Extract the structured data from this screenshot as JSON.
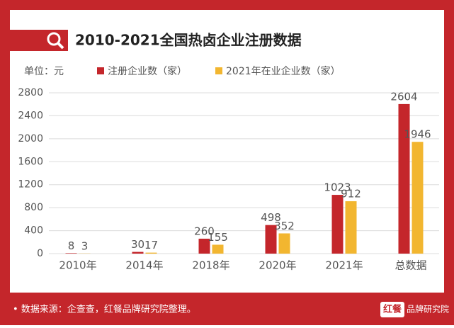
{
  "chart_data": {
    "type": "bar",
    "title": "2010-2021全国热卤企业注册数据",
    "unit_label": "单位：元",
    "categories": [
      "2010年",
      "2014年",
      "2018年",
      "2020年",
      "2021年",
      "总数据"
    ],
    "series": [
      {
        "name": "注册企业数（家）",
        "color": "#c4262b",
        "values": [
          8,
          30,
          260,
          498,
          1023,
          2604
        ]
      },
      {
        "name": "2021年在业企业数（家）",
        "color": "#f2b630",
        "values": [
          3,
          17,
          155,
          352,
          912,
          1946
        ]
      }
    ],
    "ylim": [
      0,
      2800
    ],
    "yticks": [
      0,
      400,
      800,
      1200,
      1600,
      2000,
      2400,
      2800
    ],
    "grid": true
  },
  "footer": {
    "source": "• 数据来源：企查查，红餐品牌研究院整理。",
    "logo_mark": "红餐",
    "logo_text": "品牌研究院"
  }
}
